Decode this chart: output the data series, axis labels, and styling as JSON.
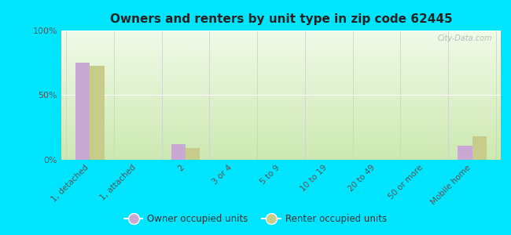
{
  "title": "Owners and renters by unit type in zip code 62445",
  "categories": [
    "1, detached",
    "1, attached",
    "2",
    "3 or 4",
    "5 to 9",
    "10 to 19",
    "20 to 49",
    "50 or more",
    "Mobile home"
  ],
  "owner_values": [
    75,
    0,
    12,
    0,
    0,
    0,
    0,
    0,
    11
  ],
  "renter_values": [
    73,
    0,
    9,
    0,
    0,
    0,
    0,
    0,
    18
  ],
  "owner_color": "#c9a8d4",
  "renter_color": "#c8cc8a",
  "outer_bg": "#00e5ff",
  "grad_top": "#cce8b0",
  "grad_bottom": "#f0fae8",
  "ylim": [
    0,
    100
  ],
  "yticks": [
    0,
    50,
    100
  ],
  "ytick_labels": [
    "0%",
    "50%",
    "100%"
  ],
  "bar_width": 0.3,
  "legend_owner": "Owner occupied units",
  "legend_renter": "Renter occupied units",
  "watermark": "City-Data.com"
}
